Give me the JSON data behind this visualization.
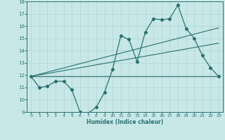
{
  "xlabel": "Humidex (Indice chaleur)",
  "xlim": [
    -0.5,
    23.5
  ],
  "ylim": [
    9,
    18
  ],
  "yticks": [
    9,
    10,
    11,
    12,
    13,
    14,
    15,
    16,
    17,
    18
  ],
  "xticks": [
    0,
    1,
    2,
    3,
    4,
    5,
    6,
    7,
    8,
    9,
    10,
    11,
    12,
    13,
    14,
    15,
    16,
    17,
    18,
    19,
    20,
    21,
    22,
    23
  ],
  "bg_color": "#c8e8e8",
  "line_color": "#2a7070",
  "grid_color": "#b0d4d4",
  "main_x": [
    0,
    1,
    2,
    3,
    4,
    5,
    6,
    7,
    8,
    9,
    10,
    11,
    12,
    13,
    14,
    15,
    16,
    17,
    18,
    19,
    20,
    21,
    22,
    23
  ],
  "main_y": [
    11.9,
    11.0,
    11.1,
    11.5,
    11.5,
    10.8,
    9.0,
    8.9,
    9.4,
    10.6,
    12.5,
    15.2,
    14.9,
    13.1,
    15.5,
    16.6,
    16.5,
    16.6,
    17.7,
    15.8,
    15.0,
    13.6,
    12.6,
    11.9
  ],
  "trend1_x": [
    0,
    23
  ],
  "trend1_y": [
    11.9,
    11.9
  ],
  "trend2_x": [
    0,
    23
  ],
  "trend2_y": [
    11.9,
    15.85
  ],
  "trend3_x": [
    0,
    23
  ],
  "trend3_y": [
    11.9,
    14.6
  ]
}
